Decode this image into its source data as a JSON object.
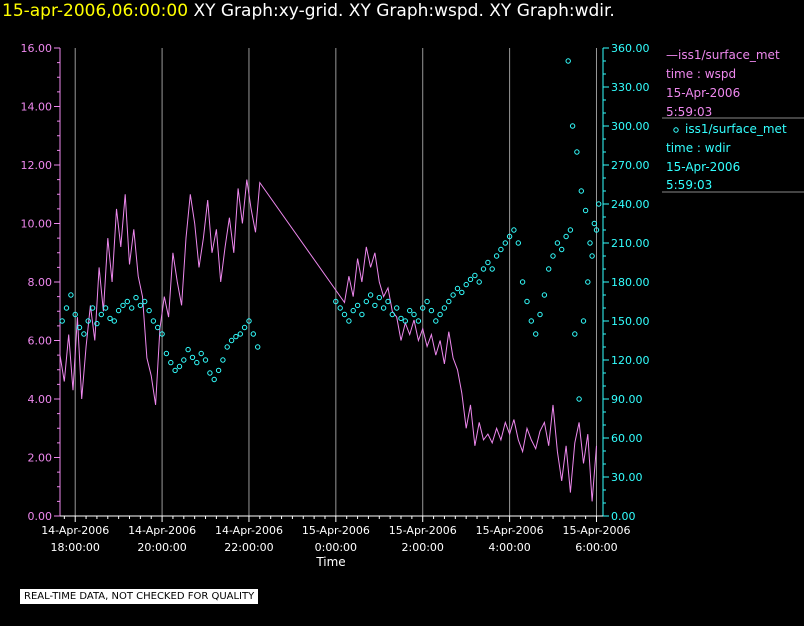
{
  "header": {
    "timestamp": "15-apr-2006,06:00:00",
    "graphs": "XY Graph:xy-grid.  XY Graph:wspd.  XY Graph:wdir."
  },
  "footer": {
    "notice": "REAL-TIME DATA, NOT CHECKED FOR QUALITY"
  },
  "colors": {
    "wspd": "#ee88ee",
    "wdir": "#33ffff",
    "grid": "#999999",
    "title": "#ffff00"
  },
  "legend": {
    "wspd": {
      "source": "iss1/surface_met",
      "var": "time : wspd",
      "date": "15-Apr-2006",
      "time": "5:59:03"
    },
    "wdir": {
      "source": "iss1/surface_met",
      "var": "time : wdir",
      "date": "15-Apr-2006",
      "time": "5:59:03"
    }
  },
  "chart_data": {
    "type": "line",
    "xlabel": "Time",
    "x_range_hours": [
      -0.35,
      12.15
    ],
    "x_ticks": [
      {
        "h": 0,
        "date": "14-Apr-2006",
        "time": "18:00:00"
      },
      {
        "h": 2,
        "date": "14-Apr-2006",
        "time": "20:00:00"
      },
      {
        "h": 4,
        "date": "14-Apr-2006",
        "time": "22:00:00"
      },
      {
        "h": 6,
        "date": "15-Apr-2006",
        "time": "0:00:00"
      },
      {
        "h": 8,
        "date": "15-Apr-2006",
        "time": "2:00:00"
      },
      {
        "h": 10,
        "date": "15-Apr-2006",
        "time": "4:00:00"
      },
      {
        "h": 12,
        "date": "15-Apr-2006",
        "time": "6:00:00"
      }
    ],
    "y_left": {
      "range": [
        0,
        16
      ],
      "ticks": [
        "0.00",
        "2.00",
        "4.00",
        "6.00",
        "8.00",
        "10.00",
        "12.00",
        "14.00",
        "16.00"
      ]
    },
    "y_right": {
      "range": [
        0,
        360
      ],
      "ticks": [
        "0.00",
        "30.00",
        "60.00",
        "90.00",
        "120.00",
        "150.00",
        "180.00",
        "210.00",
        "240.00",
        "270.00",
        "300.00",
        "330.00",
        "360.00"
      ]
    },
    "series": [
      {
        "name": "wspd",
        "axis": "left",
        "style": "line",
        "points": [
          [
            -0.35,
            5.5
          ],
          [
            -0.25,
            4.6
          ],
          [
            -0.15,
            6.2
          ],
          [
            -0.05,
            4.3
          ],
          [
            0.05,
            6.8
          ],
          [
            0.15,
            4.0
          ],
          [
            0.25,
            5.8
          ],
          [
            0.35,
            7.2
          ],
          [
            0.45,
            6.0
          ],
          [
            0.55,
            8.5
          ],
          [
            0.65,
            7.0
          ],
          [
            0.75,
            9.5
          ],
          [
            0.85,
            8.0
          ],
          [
            0.95,
            10.5
          ],
          [
            1.05,
            9.2
          ],
          [
            1.15,
            11.0
          ],
          [
            1.25,
            8.6
          ],
          [
            1.35,
            9.8
          ],
          [
            1.45,
            8.2
          ],
          [
            1.55,
            7.5
          ],
          [
            1.65,
            5.4
          ],
          [
            1.75,
            4.8
          ],
          [
            1.85,
            3.8
          ],
          [
            1.95,
            6.4
          ],
          [
            2.05,
            7.5
          ],
          [
            2.15,
            6.8
          ],
          [
            2.25,
            9.0
          ],
          [
            2.35,
            8.0
          ],
          [
            2.45,
            7.2
          ],
          [
            2.55,
            9.5
          ],
          [
            2.65,
            11.0
          ],
          [
            2.75,
            10.0
          ],
          [
            2.85,
            8.5
          ],
          [
            2.95,
            9.5
          ],
          [
            3.05,
            10.8
          ],
          [
            3.15,
            9.0
          ],
          [
            3.25,
            9.8
          ],
          [
            3.35,
            8.0
          ],
          [
            3.45,
            9.2
          ],
          [
            3.55,
            10.2
          ],
          [
            3.65,
            9.0
          ],
          [
            3.75,
            11.2
          ],
          [
            3.85,
            10.0
          ],
          [
            3.95,
            11.5
          ],
          [
            4.05,
            10.5
          ],
          [
            4.15,
            9.7
          ],
          [
            4.25,
            11.4
          ],
          [
            6.2,
            7.3
          ],
          [
            6.3,
            8.2
          ],
          [
            6.4,
            7.5
          ],
          [
            6.5,
            8.8
          ],
          [
            6.6,
            8.0
          ],
          [
            6.7,
            9.2
          ],
          [
            6.8,
            8.5
          ],
          [
            6.9,
            9.0
          ],
          [
            7.0,
            8.0
          ],
          [
            7.1,
            7.5
          ],
          [
            7.2,
            7.8
          ],
          [
            7.3,
            7.0
          ],
          [
            7.4,
            6.8
          ],
          [
            7.5,
            6.0
          ],
          [
            7.6,
            6.6
          ],
          [
            7.7,
            6.2
          ],
          [
            7.8,
            6.7
          ],
          [
            7.9,
            6.0
          ],
          [
            8.0,
            6.4
          ],
          [
            8.1,
            5.8
          ],
          [
            8.2,
            6.2
          ],
          [
            8.3,
            5.5
          ],
          [
            8.4,
            6.0
          ],
          [
            8.5,
            5.2
          ],
          [
            8.6,
            6.3
          ],
          [
            8.7,
            5.4
          ],
          [
            8.8,
            5.0
          ],
          [
            8.9,
            4.2
          ],
          [
            9.0,
            3.0
          ],
          [
            9.1,
            3.8
          ],
          [
            9.2,
            2.4
          ],
          [
            9.3,
            3.2
          ],
          [
            9.4,
            2.6
          ],
          [
            9.5,
            2.8
          ],
          [
            9.6,
            2.5
          ],
          [
            9.7,
            3.0
          ],
          [
            9.8,
            2.6
          ],
          [
            9.9,
            3.2
          ],
          [
            10.0,
            2.8
          ],
          [
            10.1,
            3.3
          ],
          [
            10.2,
            2.6
          ],
          [
            10.3,
            2.2
          ],
          [
            10.4,
            3.0
          ],
          [
            10.5,
            2.6
          ],
          [
            10.6,
            2.3
          ],
          [
            10.7,
            2.9
          ],
          [
            10.8,
            3.2
          ],
          [
            10.9,
            2.4
          ],
          [
            11.0,
            3.8
          ],
          [
            11.1,
            2.2
          ],
          [
            11.2,
            1.2
          ],
          [
            11.3,
            2.4
          ],
          [
            11.4,
            0.8
          ],
          [
            11.5,
            2.5
          ],
          [
            11.6,
            3.2
          ],
          [
            11.7,
            1.8
          ],
          [
            11.8,
            2.8
          ],
          [
            11.9,
            0.5
          ],
          [
            12.0,
            2.4
          ]
        ]
      },
      {
        "name": "wdir",
        "axis": "right",
        "style": "scatter",
        "points": [
          [
            -0.3,
            150
          ],
          [
            -0.2,
            160
          ],
          [
            -0.1,
            170
          ],
          [
            0.0,
            155
          ],
          [
            0.1,
            145
          ],
          [
            0.2,
            140
          ],
          [
            0.3,
            150
          ],
          [
            0.4,
            160
          ],
          [
            0.5,
            148
          ],
          [
            0.6,
            155
          ],
          [
            0.7,
            160
          ],
          [
            0.8,
            152
          ],
          [
            0.9,
            150
          ],
          [
            1.0,
            158
          ],
          [
            1.1,
            162
          ],
          [
            1.2,
            165
          ],
          [
            1.3,
            160
          ],
          [
            1.4,
            168
          ],
          [
            1.5,
            162
          ],
          [
            1.6,
            165
          ],
          [
            1.7,
            158
          ],
          [
            1.8,
            150
          ],
          [
            1.9,
            145
          ],
          [
            2.0,
            140
          ],
          [
            2.1,
            125
          ],
          [
            2.2,
            118
          ],
          [
            2.3,
            112
          ],
          [
            2.4,
            115
          ],
          [
            2.5,
            120
          ],
          [
            2.6,
            128
          ],
          [
            2.7,
            122
          ],
          [
            2.8,
            118
          ],
          [
            2.9,
            125
          ],
          [
            3.0,
            120
          ],
          [
            3.1,
            110
          ],
          [
            3.2,
            105
          ],
          [
            3.3,
            112
          ],
          [
            3.4,
            120
          ],
          [
            3.5,
            130
          ],
          [
            3.6,
            135
          ],
          [
            3.7,
            138
          ],
          [
            3.8,
            140
          ],
          [
            3.9,
            145
          ],
          [
            4.0,
            150
          ],
          [
            4.1,
            140
          ],
          [
            4.2,
            130
          ],
          [
            6.0,
            165
          ],
          [
            6.1,
            160
          ],
          [
            6.2,
            155
          ],
          [
            6.3,
            150
          ],
          [
            6.4,
            158
          ],
          [
            6.5,
            162
          ],
          [
            6.6,
            155
          ],
          [
            6.7,
            165
          ],
          [
            6.8,
            170
          ],
          [
            6.9,
            162
          ],
          [
            7.0,
            168
          ],
          [
            7.1,
            160
          ],
          [
            7.2,
            165
          ],
          [
            7.3,
            155
          ],
          [
            7.4,
            160
          ],
          [
            7.5,
            152
          ],
          [
            7.6,
            150
          ],
          [
            7.7,
            158
          ],
          [
            7.8,
            155
          ],
          [
            7.9,
            150
          ],
          [
            8.0,
            160
          ],
          [
            8.1,
            165
          ],
          [
            8.2,
            158
          ],
          [
            8.3,
            150
          ],
          [
            8.4,
            155
          ],
          [
            8.5,
            160
          ],
          [
            8.6,
            165
          ],
          [
            8.7,
            170
          ],
          [
            8.8,
            175
          ],
          [
            8.9,
            172
          ],
          [
            9.0,
            178
          ],
          [
            9.1,
            182
          ],
          [
            9.2,
            185
          ],
          [
            9.3,
            180
          ],
          [
            9.4,
            190
          ],
          [
            9.5,
            195
          ],
          [
            9.6,
            190
          ],
          [
            9.7,
            200
          ],
          [
            9.8,
            205
          ],
          [
            9.9,
            210
          ],
          [
            10.0,
            215
          ],
          [
            10.1,
            220
          ],
          [
            10.2,
            210
          ],
          [
            10.3,
            180
          ],
          [
            10.4,
            165
          ],
          [
            10.5,
            150
          ],
          [
            10.6,
            140
          ],
          [
            10.7,
            155
          ],
          [
            10.8,
            170
          ],
          [
            10.9,
            190
          ],
          [
            11.0,
            200
          ],
          [
            11.1,
            210
          ],
          [
            11.2,
            205
          ],
          [
            11.3,
            215
          ],
          [
            11.4,
            220
          ],
          [
            11.5,
            140
          ],
          [
            11.6,
            90
          ],
          [
            11.7,
            150
          ],
          [
            11.8,
            180
          ],
          [
            11.9,
            200
          ],
          [
            12.0,
            220
          ],
          [
            11.35,
            350
          ],
          [
            11.45,
            300
          ],
          [
            11.55,
            280
          ],
          [
            11.65,
            250
          ],
          [
            11.75,
            235
          ],
          [
            11.85,
            210
          ],
          [
            11.95,
            225
          ],
          [
            12.05,
            240
          ]
        ]
      }
    ]
  }
}
